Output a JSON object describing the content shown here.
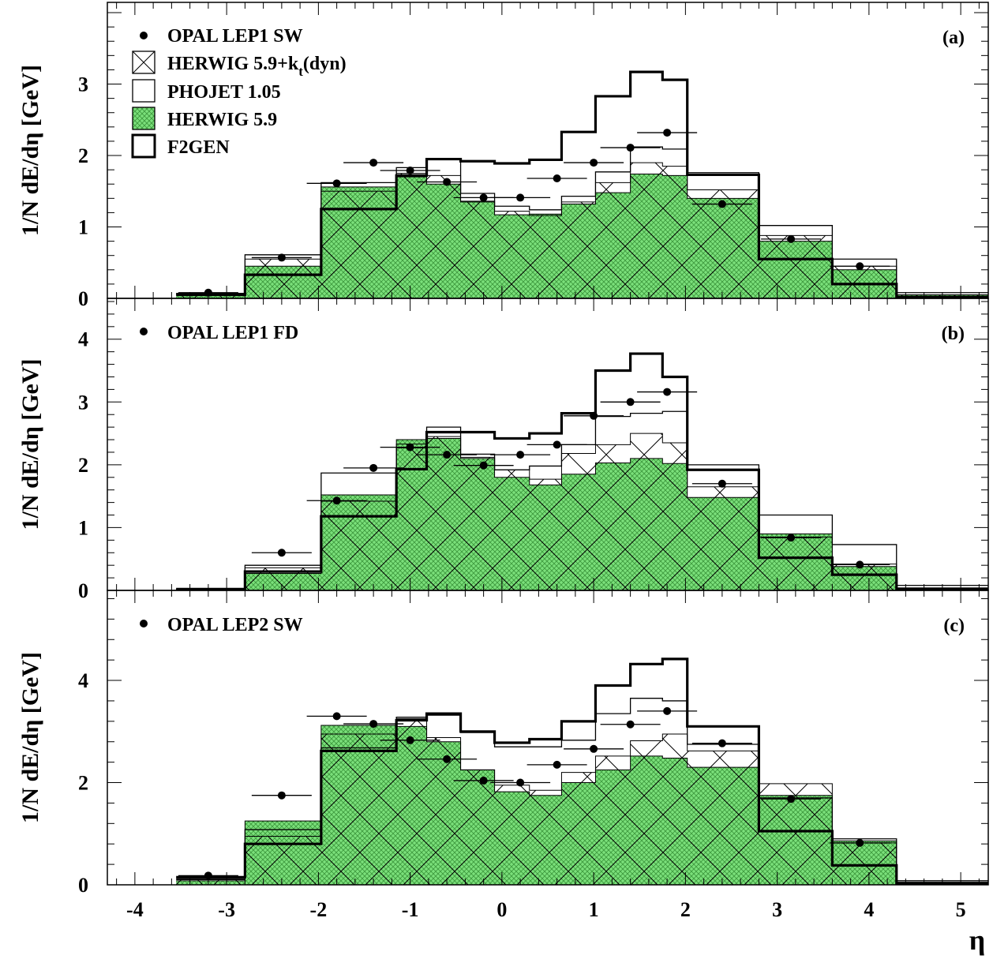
{
  "chart_data": {
    "type": "step-histogram",
    "xlabel": "η",
    "xlim": [
      -4.3,
      5.3
    ],
    "xticks": [
      "-4",
      "-3",
      "-2",
      "-1",
      "0",
      "1",
      "2",
      "3",
      "4",
      "5"
    ],
    "bins": [
      -3.55,
      -2.8,
      -1.97,
      -1.15,
      -0.82,
      -0.45,
      -0.08,
      0.3,
      0.65,
      1.02,
      1.4,
      1.75,
      2.02,
      2.8,
      3.6,
      4.3,
      5.3
    ],
    "legend": [
      {
        "key": "data",
        "label": "OPAL LEP1 SW"
      },
      {
        "key": "herwig_kt",
        "label_main": "HERWIG 5.9+k",
        "label_sub": "t",
        "label_tail": "(dyn)"
      },
      {
        "key": "phojet",
        "label": "PHOJET 1.05"
      },
      {
        "key": "herwig",
        "label": "HERWIG 5.9"
      },
      {
        "key": "f2gen",
        "label": "F2GEN"
      }
    ],
    "colors": {
      "herwig_fill": "#7be07b",
      "herwig_hatch": "#3e9a3e",
      "kt_hatch": "#000000",
      "axis": "#000000"
    },
    "panels": [
      {
        "tag": "(a)",
        "data_label": "OPAL LEP1 SW",
        "ylabel": "1/N dE/dη [GeV]",
        "ylim": [
          0,
          4.1
        ],
        "yticks": [
          0,
          1,
          2,
          3
        ],
        "series": {
          "f2gen": [
            0.05,
            0.33,
            1.25,
            1.72,
            1.95,
            1.92,
            1.89,
            1.94,
            2.33,
            2.83,
            3.17,
            3.06,
            1.73,
            0.55,
            0.2,
            0.02
          ],
          "phojet": [
            0.07,
            0.61,
            1.62,
            1.83,
            1.96,
            1.47,
            1.29,
            1.24,
            1.43,
            1.77,
            2.12,
            2.09,
            1.76,
            1.02,
            0.55,
            0.08
          ],
          "herwig_kt": [
            0.06,
            0.55,
            1.5,
            1.75,
            1.72,
            1.35,
            1.22,
            1.16,
            1.35,
            1.62,
            1.9,
            1.85,
            1.52,
            0.88,
            0.45,
            0.05
          ],
          "herwig": [
            0.06,
            0.45,
            1.56,
            1.7,
            1.6,
            1.36,
            1.17,
            1.18,
            1.32,
            1.48,
            1.74,
            1.72,
            1.4,
            0.8,
            0.4,
            0.05
          ]
        },
        "points": {
          "x": [
            -3.2,
            -2.4,
            -1.8,
            -1.4,
            -1.0,
            -0.6,
            -0.2,
            0.2,
            0.6,
            1.0,
            1.4,
            1.8,
            2.4,
            3.15,
            3.9
          ],
          "y": [
            0.08,
            0.57,
            1.61,
            1.9,
            1.79,
            1.63,
            1.41,
            1.41,
            1.68,
            1.9,
            2.11,
            2.32,
            1.32,
            0.83,
            0.45
          ]
        }
      },
      {
        "tag": "(b)",
        "data_label": "OPAL LEP1 FD",
        "ylabel": "1/N dE/dη [GeV]",
        "ylim": [
          0,
          4.6
        ],
        "yticks": [
          0,
          1,
          2,
          3,
          4
        ],
        "series": {
          "f2gen": [
            0.02,
            0.3,
            1.18,
            1.93,
            2.52,
            2.52,
            2.42,
            2.5,
            2.82,
            3.5,
            3.77,
            3.4,
            1.92,
            0.52,
            0.25,
            0.02
          ],
          "phojet": [
            0.02,
            0.4,
            1.87,
            2.27,
            2.6,
            2.17,
            1.92,
            1.98,
            2.32,
            2.77,
            2.82,
            2.85,
            2.0,
            1.2,
            0.73,
            0.08
          ],
          "herwig_kt": [
            0.02,
            0.36,
            1.42,
            2.33,
            2.45,
            2.12,
            1.92,
            1.77,
            2.18,
            2.32,
            2.5,
            2.35,
            1.65,
            0.85,
            0.42,
            0.04
          ],
          "herwig": [
            0.02,
            0.27,
            1.52,
            2.4,
            2.42,
            2.1,
            1.8,
            1.68,
            1.85,
            2.03,
            2.1,
            2.02,
            1.48,
            0.9,
            0.38,
            0.04
          ]
        },
        "points": {
          "x": [
            -2.4,
            -1.8,
            -1.4,
            -1.0,
            -0.6,
            -0.2,
            0.2,
            0.6,
            1.0,
            1.4,
            1.8,
            2.4,
            3.15,
            3.9
          ],
          "y": [
            0.6,
            1.43,
            1.95,
            2.28,
            2.16,
            1.99,
            2.16,
            2.32,
            2.78,
            3.0,
            3.16,
            1.7,
            0.84,
            0.41
          ]
        }
      },
      {
        "tag": "(c)",
        "data_label": "OPAL LEP2 SW",
        "ylabel": "1/N dE/dη [GeV]",
        "ylim": [
          0,
          5.7
        ],
        "yticks": [
          0,
          2,
          4
        ],
        "series": {
          "f2gen": [
            0.15,
            0.8,
            2.62,
            3.22,
            3.35,
            3.0,
            2.78,
            2.85,
            3.2,
            3.9,
            4.32,
            4.42,
            3.1,
            1.05,
            0.38,
            0.02
          ],
          "phojet": [
            0.12,
            1.08,
            2.68,
            3.28,
            3.32,
            2.98,
            2.7,
            2.7,
            2.83,
            3.35,
            3.65,
            3.6,
            2.75,
            1.7,
            0.9,
            0.08
          ],
          "herwig_kt": [
            0.1,
            0.95,
            2.95,
            3.25,
            2.88,
            2.25,
            1.95,
            1.85,
            2.2,
            2.52,
            2.82,
            2.95,
            2.62,
            1.98,
            0.82,
            0.05
          ],
          "herwig": [
            0.08,
            1.25,
            3.12,
            3.1,
            2.8,
            2.25,
            1.82,
            1.75,
            2.0,
            2.25,
            2.52,
            2.48,
            2.3,
            1.75,
            0.86,
            0.05
          ]
        },
        "points": {
          "x": [
            -3.2,
            -2.4,
            -1.8,
            -1.4,
            -1.0,
            -0.6,
            -0.2,
            0.2,
            0.6,
            1.0,
            1.4,
            1.8,
            2.4,
            3.15,
            3.9
          ],
          "y": [
            0.18,
            1.75,
            3.3,
            3.15,
            2.83,
            2.46,
            2.04,
            2.0,
            2.35,
            2.66,
            3.14,
            3.4,
            2.77,
            1.68,
            0.82
          ]
        }
      }
    ]
  }
}
